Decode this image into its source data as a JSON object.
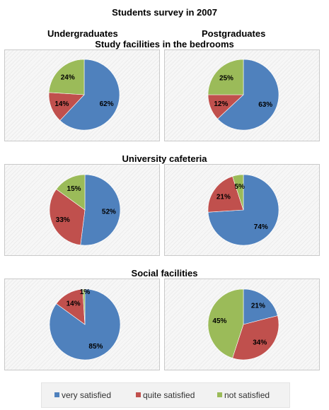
{
  "title": "Students survey in 2007",
  "columns": [
    "Undergraduates",
    "Postgraduates"
  ],
  "legend": [
    {
      "label": "very satisfied",
      "color": "#4f81bd"
    },
    {
      "label": "quite satisfied",
      "color": "#c0504d"
    },
    {
      "label": "not satisfied",
      "color": "#9bbb59"
    }
  ],
  "chart_data": [
    {
      "type": "pie",
      "section": "Study facilities in the bedrooms",
      "group": "Undergraduates",
      "labels": [
        "very satisfied",
        "quite satisfied",
        "not satisfied"
      ],
      "values": [
        62,
        14,
        24
      ],
      "value_labels": [
        "62%",
        "14%",
        "24%"
      ]
    },
    {
      "type": "pie",
      "section": "Study facilities in the bedrooms",
      "group": "Postgraduates",
      "labels": [
        "very satisfied",
        "quite satisfied",
        "not satisfied"
      ],
      "values": [
        63,
        12,
        25
      ],
      "value_labels": [
        "63%",
        "12%",
        "25%"
      ]
    },
    {
      "type": "pie",
      "section": "University cafeteria",
      "group": "Undergraduates",
      "labels": [
        "very satisfied",
        "quite satisfied",
        "not satisfied"
      ],
      "values": [
        52,
        33,
        15
      ],
      "value_labels": [
        "52%",
        "33%",
        "15%"
      ]
    },
    {
      "type": "pie",
      "section": "University cafeteria",
      "group": "Postgraduates",
      "labels": [
        "very satisfied",
        "quite satisfied",
        "not satisfied"
      ],
      "values": [
        74,
        21,
        5
      ],
      "value_labels": [
        "74%",
        "21%",
        "5%"
      ]
    },
    {
      "type": "pie",
      "section": "Social facilities",
      "group": "Undergraduates",
      "labels": [
        "very satisfied",
        "quite satisfied",
        "not satisfied"
      ],
      "values": [
        85,
        14,
        1
      ],
      "value_labels": [
        "85%",
        "14%",
        "1%"
      ]
    },
    {
      "type": "pie",
      "section": "Social facilities",
      "group": "Postgraduates",
      "labels": [
        "very satisfied",
        "quite satisfied",
        "not satisfied"
      ],
      "values": [
        21,
        34,
        45
      ],
      "value_labels": [
        "21%",
        "34%",
        "45%"
      ]
    }
  ]
}
